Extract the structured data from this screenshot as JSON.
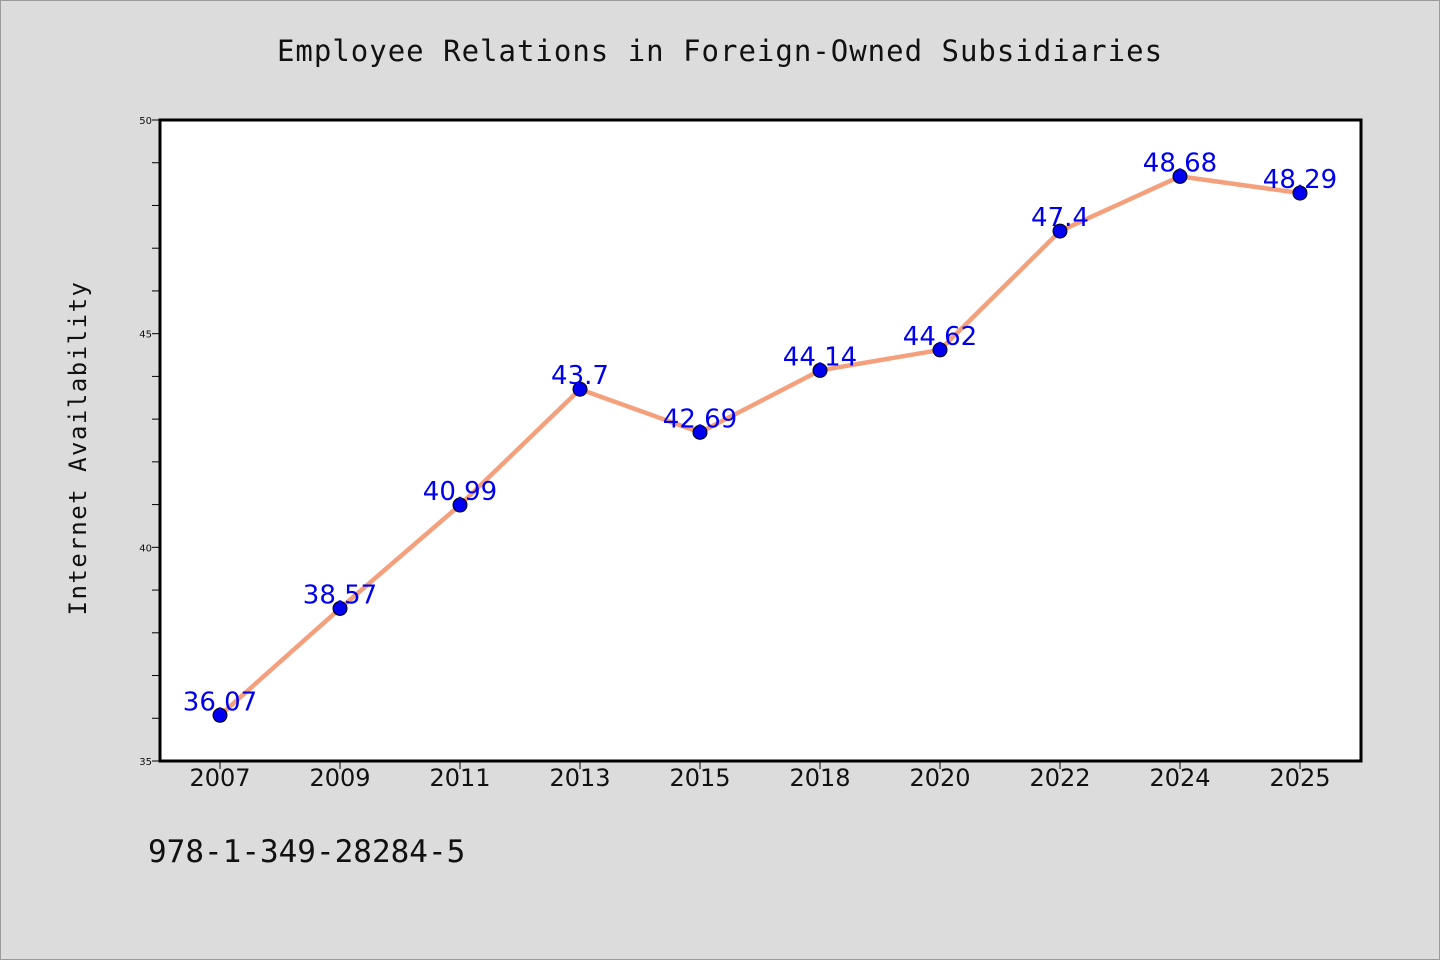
{
  "colors": {
    "page_background": "#dcdcdc",
    "plot_background": "#ffffff",
    "line": "#f4a07c",
    "marker": "#0000ee",
    "data_label": "#0000ee",
    "axis": "#000000"
  },
  "footer_text": "978-1-349-28284-5",
  "chart_data": {
    "type": "line",
    "title": "Employee Relations in Foreign-Owned Subsidiaries",
    "xlabel": "",
    "ylabel": "Internet Availability",
    "categories": [
      "2007",
      "2009",
      "2011",
      "2013",
      "2015",
      "2018",
      "2020",
      "2022",
      "2024",
      "2025"
    ],
    "series": [
      {
        "values": [
          36.07,
          38.57,
          40.99,
          43.7,
          42.69,
          44.14,
          44.62,
          47.4,
          48.68,
          48.29
        ],
        "labels": [
          "36.07",
          "38.57",
          "40.99",
          "43.7",
          "42.69",
          "44.14",
          "44.62",
          "47.4",
          "48.68",
          "48.29"
        ]
      }
    ],
    "ylim": [
      35,
      50
    ],
    "yticks_major": [
      35,
      40,
      45,
      50
    ],
    "yticks_minor_step": 1,
    "grid": false,
    "legend": "none",
    "marker": "circle"
  }
}
